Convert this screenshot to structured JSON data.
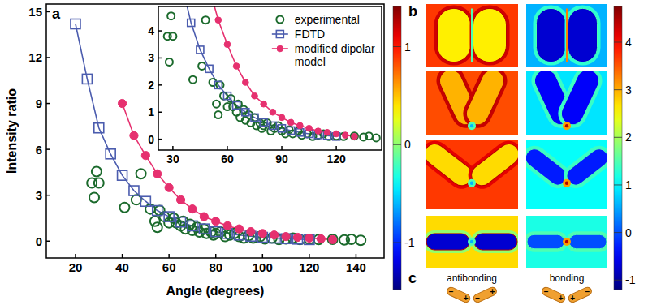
{
  "chart_data": [
    {
      "type": "scatter",
      "panel_label": "a",
      "x_label": "Angle (degrees)",
      "y_label": "Intensity ratio",
      "xlim": [
        7.5,
        152
      ],
      "ylim": [
        -1.1,
        15.5
      ],
      "xticks": [
        20,
        40,
        60,
        80,
        100,
        120,
        140
      ],
      "yticks": [
        0,
        3,
        6,
        9,
        12,
        15
      ],
      "series": [
        {
          "name": "experimental",
          "color": "#1b6a2c",
          "marker": "circle-open",
          "line_style": "none",
          "x": [
            27,
            28,
            29,
            30,
            41,
            46,
            48,
            52,
            54,
            55,
            56,
            58,
            60,
            62,
            63,
            65,
            66,
            67,
            69,
            70,
            72,
            73,
            75,
            76,
            78,
            79,
            80,
            82,
            84,
            86,
            88,
            90,
            92,
            94,
            96,
            99,
            101,
            104,
            107,
            110,
            113,
            116,
            120,
            124,
            130,
            135,
            138,
            142
          ],
          "values": [
            3.8,
            2.85,
            4.55,
            3.8,
            2.2,
            2.7,
            4.4,
            2.1,
            1.3,
            0.9,
            2.0,
            1.6,
            1.2,
            1.5,
            1.2,
            1.0,
            1.3,
            0.8,
            1.1,
            0.7,
            0.9,
            0.6,
            0.8,
            0.5,
            0.6,
            0.4,
            0.5,
            0.6,
            0.3,
            0.4,
            0.5,
            0.3,
            0.2,
            0.35,
            0.2,
            0.3,
            0.15,
            0.2,
            0.1,
            0.15,
            0.2,
            0.1,
            0.12,
            0.1,
            0.12,
            0.08,
            0.12,
            0.05
          ]
        },
        {
          "name": "FDTD",
          "color": "#4b5cae",
          "marker": "square-open",
          "line_style": "solid",
          "x": [
            20,
            25,
            30,
            35,
            40,
            45,
            50,
            55,
            60,
            65,
            70,
            75,
            80,
            85,
            90,
            95,
            100,
            105,
            110,
            115,
            120
          ],
          "values": [
            14.2,
            10.6,
            7.4,
            5.7,
            4.3,
            3.3,
            2.6,
            2.0,
            1.6,
            1.25,
            1.0,
            0.8,
            0.62,
            0.5,
            0.4,
            0.32,
            0.25,
            0.2,
            0.16,
            0.13,
            0.1
          ]
        },
        {
          "name": "modified dipolar model",
          "color": "#e6306f",
          "marker": "circle",
          "line_style": "solid",
          "x": [
            40,
            45,
            50,
            55,
            60,
            65,
            70,
            75,
            80,
            85,
            90,
            95,
            100,
            105,
            110,
            115,
            120,
            125,
            130
          ],
          "values": [
            9.0,
            6.9,
            5.6,
            4.4,
            3.5,
            2.7,
            2.1,
            1.6,
            1.3,
            1.0,
            0.8,
            0.62,
            0.5,
            0.4,
            0.3,
            0.25,
            0.2,
            0.15,
            0.1
          ]
        }
      ]
    },
    {
      "type": "scatter",
      "xlim": [
        22,
        145
      ],
      "ylim": [
        -0.4,
        4.9
      ],
      "xticks": [
        30,
        60,
        90,
        120
      ],
      "yticks": [
        0,
        1,
        2,
        3,
        4
      ],
      "legend": "top-right"
    }
  ],
  "panel_b": {
    "panel_label": "b",
    "colorbars": [
      {
        "range": [
          -1.48,
          1.41
        ],
        "ticks": [
          -1,
          0,
          1
        ]
      },
      {
        "range": [
          -1.2,
          4.75
        ],
        "ticks": [
          -1,
          0,
          1,
          2,
          3,
          4
        ]
      }
    ]
  },
  "panel_c": {
    "panel_label": "c",
    "modes": [
      "antibonding",
      "bonding"
    ],
    "plus": "+",
    "minus": "−"
  }
}
